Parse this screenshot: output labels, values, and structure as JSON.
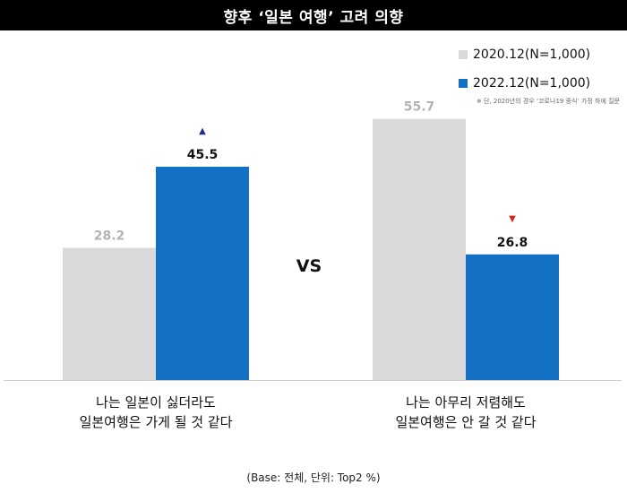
{
  "title": "향후 ‘일본 여행’ 고려 의향",
  "note": "※ 단, 2020년의 경우 ‘코로나19 종식’ 가정 하에 질문",
  "footer": "(Base: 전체, 단위: Top2 %)",
  "vs_label": "VS",
  "colors": {
    "series_2020": "#d9d9d9",
    "series_2022": "#1470c3",
    "up": "#1f2e8c",
    "down": "#d9261c"
  },
  "chart_data": {
    "type": "bar",
    "title": "향후 ‘일본 여행’ 고려 의향",
    "categories": [
      [
        "나는 일본이 싫더라도",
        "일본여행은 가게 될 것 같다"
      ],
      [
        "나는 아무리 저렴해도",
        "일본여행은 안 갈 것 같다"
      ]
    ],
    "series": [
      {
        "name": "2020.12(N=1,000)",
        "values": [
          28.2,
          55.7
        ],
        "labels": [
          "28.2",
          "55.7"
        ]
      },
      {
        "name": "2022.12(N=1,000)",
        "values": [
          45.5,
          26.8
        ],
        "labels": [
          "45.5",
          "26.8"
        ]
      }
    ],
    "change_markers": [
      "▲",
      "▼"
    ],
    "ylim": [
      0,
      65
    ],
    "grid": false,
    "legend_position": "top-right",
    "xlabel": "",
    "ylabel": ""
  }
}
